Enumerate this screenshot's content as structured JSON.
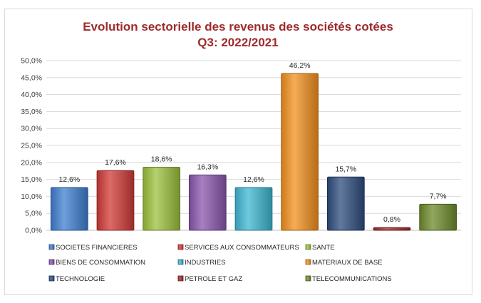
{
  "chart_data": {
    "type": "bar",
    "title": "Evolution sectorielle des revenus des sociétés cotées",
    "subtitle": "Q3: 2022/2021",
    "xlabel": "",
    "ylabel": "",
    "ylim": [
      0,
      50
    ],
    "y_unit": "%",
    "y_ticks": [
      "0,0%",
      "5,0%",
      "10,0%",
      "15,0%",
      "20,0%",
      "25,0%",
      "30,0%",
      "35,0%",
      "40,0%",
      "45,0%",
      "50,0%"
    ],
    "grid": true,
    "legend_position": "bottom",
    "categories": [
      "SOCIETES FINANCIERES",
      "SERVICES AUX CONSOMMATEURS",
      "SANTE",
      "BIENS DE CONSOMMATION",
      "INDUSTRIES",
      "MATERIAUX DE BASE",
      "TECHNOLOGIE",
      "PETROLE ET GAZ",
      "TELECOMMUNICATIONS"
    ],
    "values": [
      12.6,
      17.6,
      18.6,
      16.3,
      12.6,
      46.2,
      15.7,
      0.8,
      7.7
    ],
    "data_labels": [
      "12,6%",
      "17,6%",
      "18,6%",
      "16,3%",
      "12,6%",
      "46,2%",
      "15,7%",
      "0,8%",
      "7,7%"
    ],
    "colors": [
      "#3f7fd0",
      "#d03a36",
      "#9bc13c",
      "#8a56ad",
      "#3fb7d1",
      "#f2901e",
      "#2e4c7e",
      "#9e2a2b",
      "#6e8a2a"
    ]
  }
}
